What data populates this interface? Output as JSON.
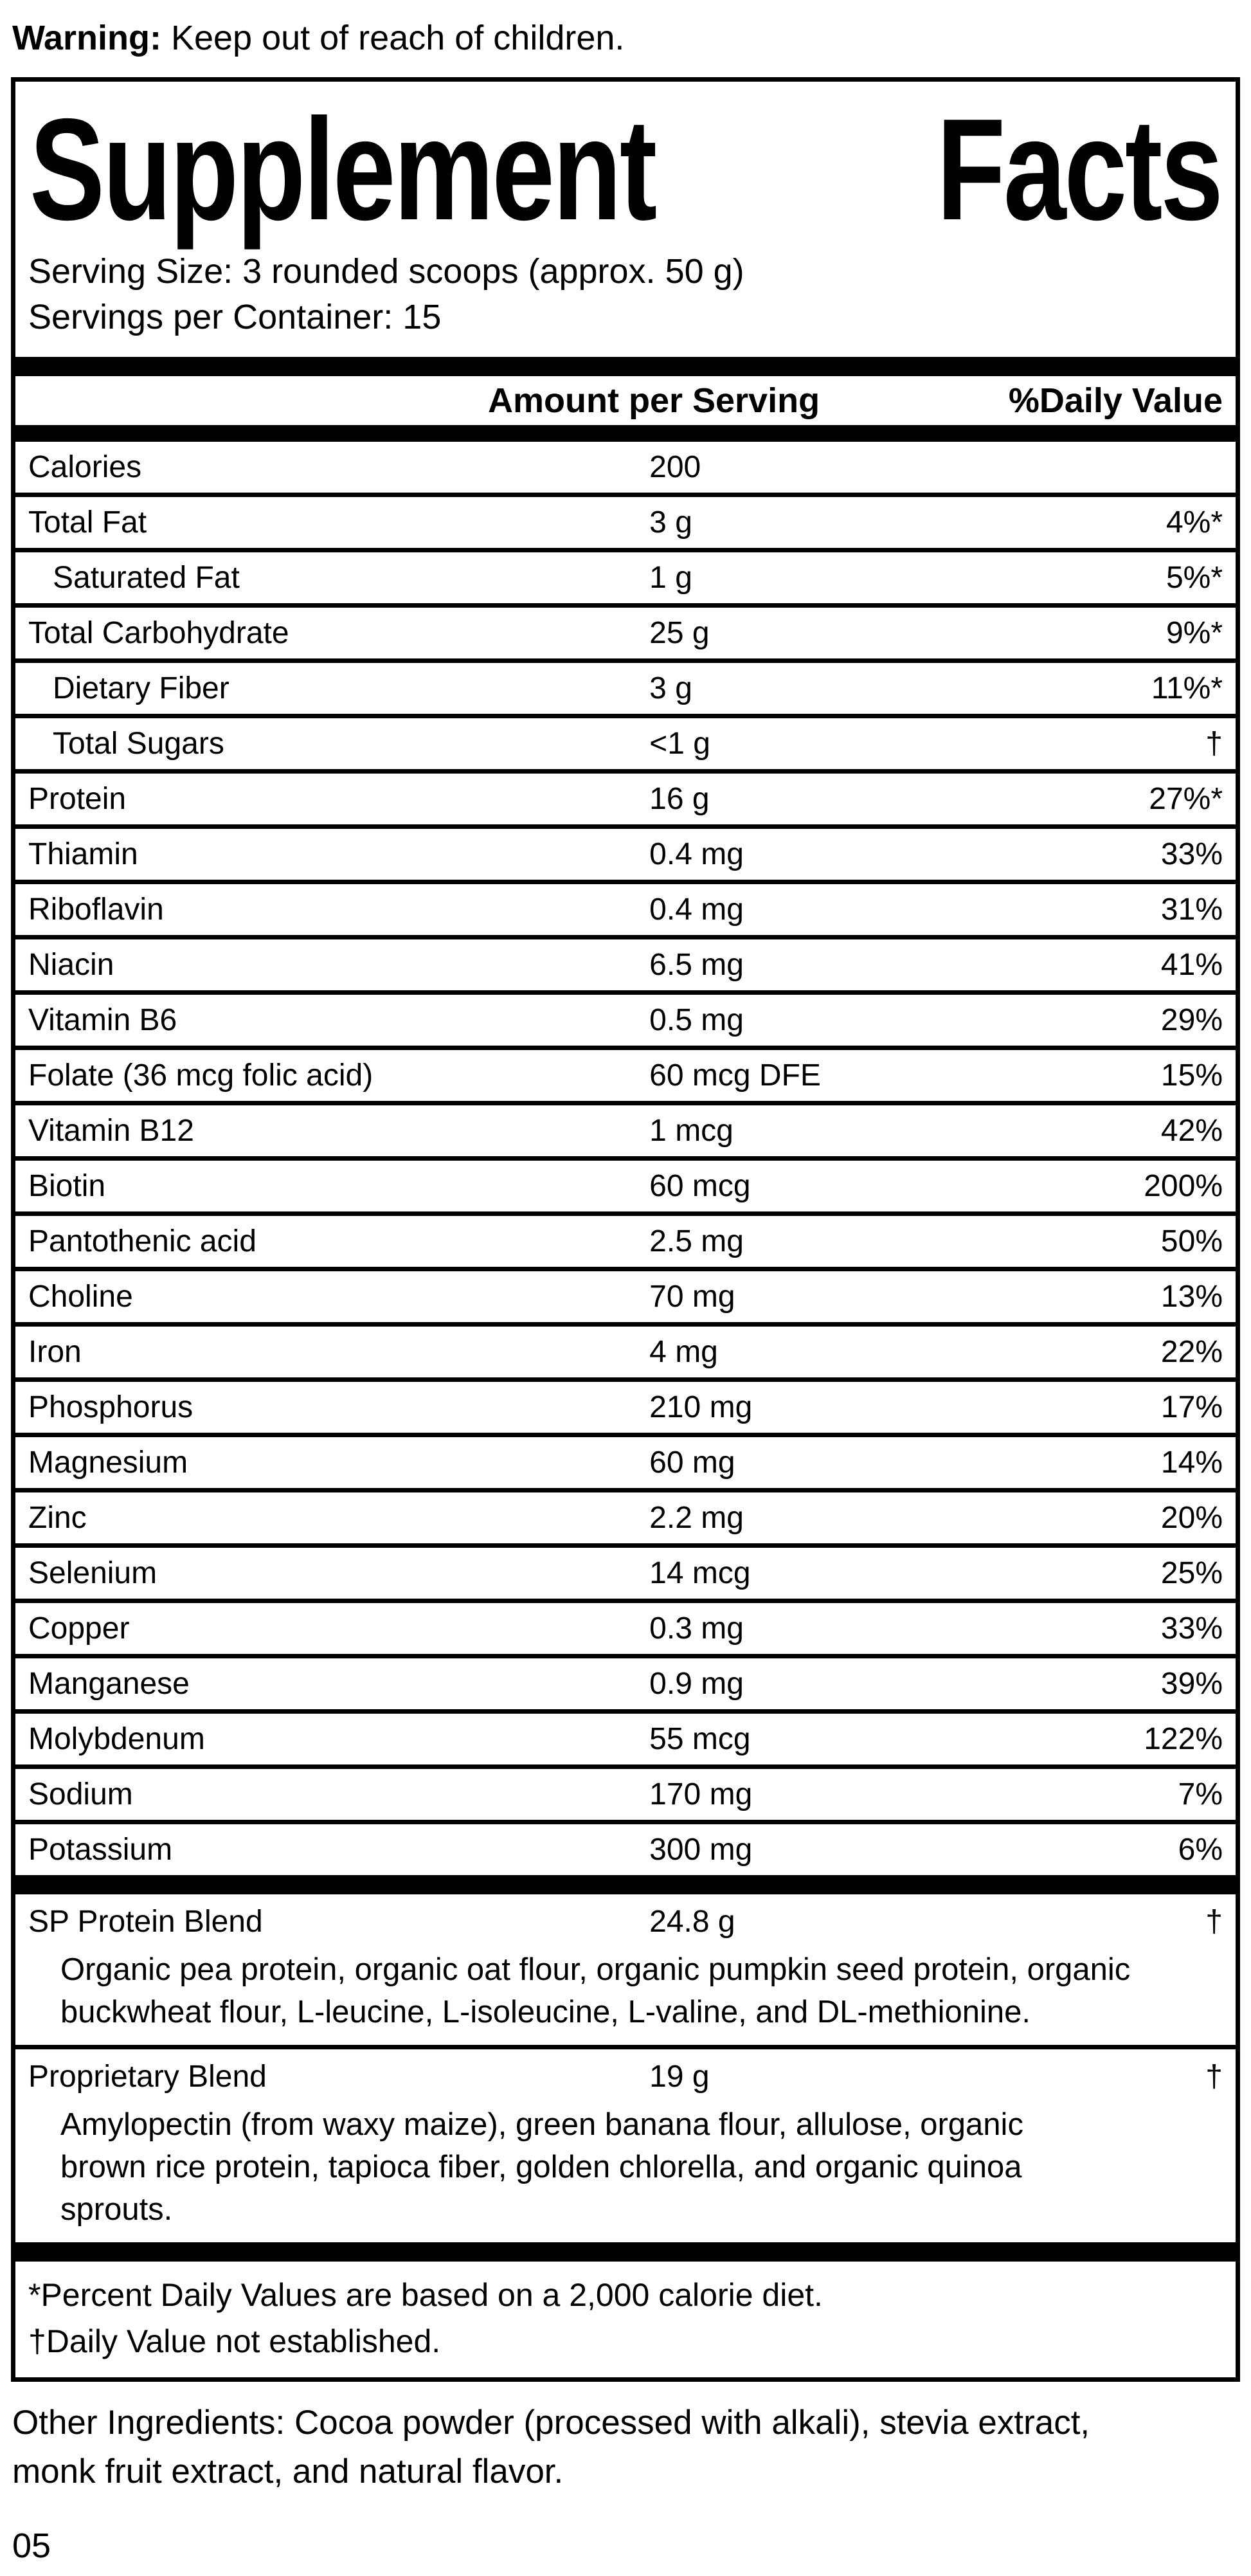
{
  "page": {
    "background": "#ffffff",
    "text_color": "#000000"
  },
  "warning": {
    "label": "Warning:",
    "text": " Keep out of reach of children."
  },
  "panel": {
    "title": {
      "word1": "Supplement",
      "word2": "Facts"
    },
    "serving_size": "Serving Size: 3 rounded scoops (approx. 50 g)",
    "servings_per_container": "Servings per Container: 15",
    "columns": {
      "amount": "Amount per Serving",
      "daily_value": "%Daily Value"
    },
    "rows": [
      {
        "label": "Calories",
        "amount": "200",
        "dv": "",
        "indent": false
      },
      {
        "label": "Total Fat",
        "amount": "3 g",
        "dv": "4%*",
        "indent": false
      },
      {
        "label": "Saturated Fat",
        "amount": "1 g",
        "dv": "5%*",
        "indent": true
      },
      {
        "label": "Total Carbohydrate",
        "amount": "25 g",
        "dv": "9%*",
        "indent": false
      },
      {
        "label": "Dietary Fiber",
        "amount": "3 g",
        "dv": "11%*",
        "indent": true
      },
      {
        "label": "Total Sugars",
        "amount": "<1 g",
        "dv": "†",
        "indent": true
      },
      {
        "label": "Protein",
        "amount": "16 g",
        "dv": "27%*",
        "indent": false
      },
      {
        "label": "Thiamin",
        "amount": "0.4 mg",
        "dv": "33%",
        "indent": false
      },
      {
        "label": "Riboflavin",
        "amount": "0.4 mg",
        "dv": "31%",
        "indent": false
      },
      {
        "label": "Niacin",
        "amount": "6.5 mg",
        "dv": "41%",
        "indent": false
      },
      {
        "label": "Vitamin B6",
        "amount": "0.5 mg",
        "dv": "29%",
        "indent": false
      },
      {
        "label": "Folate (36 mcg folic acid)",
        "amount": "60 mcg DFE",
        "dv": "15%",
        "indent": false
      },
      {
        "label": "Vitamin B12",
        "amount": "1 mcg",
        "dv": "42%",
        "indent": false
      },
      {
        "label": "Biotin",
        "amount": "60 mcg",
        "dv": "200%",
        "indent": false
      },
      {
        "label": "Pantothenic acid",
        "amount": "2.5 mg",
        "dv": "50%",
        "indent": false
      },
      {
        "label": "Choline",
        "amount": "70 mg",
        "dv": "13%",
        "indent": false
      },
      {
        "label": "Iron",
        "amount": "4 mg",
        "dv": "22%",
        "indent": false
      },
      {
        "label": "Phosphorus",
        "amount": "210 mg",
        "dv": "17%",
        "indent": false
      },
      {
        "label": "Magnesium",
        "amount": "60 mg",
        "dv": "14%",
        "indent": false
      },
      {
        "label": "Zinc",
        "amount": "2.2 mg",
        "dv": "20%",
        "indent": false
      },
      {
        "label": "Selenium",
        "amount": "14 mcg",
        "dv": "25%",
        "indent": false
      },
      {
        "label": "Copper",
        "amount": "0.3 mg",
        "dv": "33%",
        "indent": false
      },
      {
        "label": "Manganese",
        "amount": "0.9 mg",
        "dv": "39%",
        "indent": false
      },
      {
        "label": "Molybdenum",
        "amount": "55 mcg",
        "dv": "122%",
        "indent": false
      },
      {
        "label": "Sodium",
        "amount": "170 mg",
        "dv": "7%",
        "indent": false
      },
      {
        "label": "Potassium",
        "amount": "300 mg",
        "dv": "6%",
        "indent": false
      }
    ],
    "blends": [
      {
        "label": "SP Protein Blend",
        "amount": "24.8 g",
        "dv": "†",
        "description": "Organic pea protein, organic oat flour, organic pumpkin seed protein, organic\nbuckwheat flour, L-leucine, L-isoleucine, L-valine, and DL-methionine."
      },
      {
        "label": "Proprietary Blend",
        "amount": "19 g",
        "dv": "†",
        "description": "Amylopectin (from waxy maize), green banana flour, allulose, organic\nbrown rice protein, tapioca fiber, golden chlorella, and organic quinoa\nsprouts."
      }
    ],
    "footnotes": [
      "*Percent Daily Values are based on a 2,000 calorie diet.",
      "†Daily Value not established."
    ]
  },
  "other_ingredients": "Other Ingredients: Cocoa powder (processed with alkali), stevia extract,\nmonk fruit extract, and natural flavor.",
  "page_number": "05"
}
